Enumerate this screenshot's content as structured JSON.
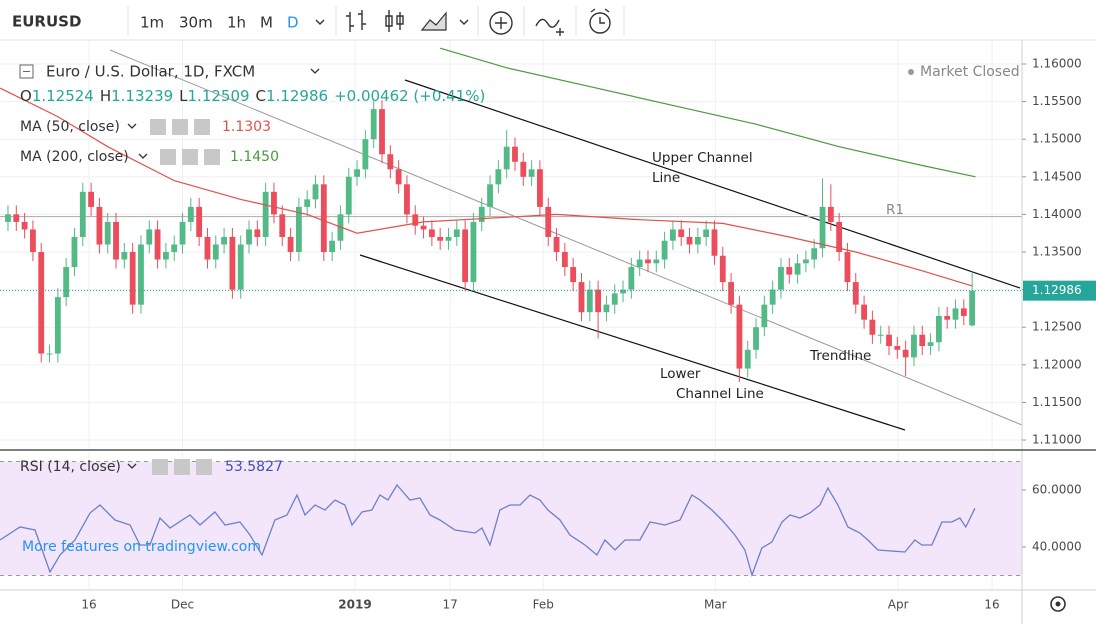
{
  "toolbar": {
    "symbol": "EURUSD",
    "intervals": [
      "1m",
      "30m",
      "1h",
      "M",
      "D"
    ]
  },
  "chart_data": {
    "type": "candlestick",
    "title": "Euro / U.S. Dollar, 1D, FXCM",
    "status": "Market Closed",
    "ohlc_labels": [
      "O",
      "H",
      "L",
      "C"
    ],
    "change": "+0.00462 (+0.41%)",
    "up_color": "#53b987",
    "down_color": "#eb4d5c",
    "candles": [
      [
        1.139,
        1.1412,
        1.1378,
        1.14
      ],
      [
        1.14,
        1.1412,
        1.1378,
        1.139
      ],
      [
        1.139,
        1.1402,
        1.1368,
        1.138
      ],
      [
        1.138,
        1.1392,
        1.1338,
        1.135
      ],
      [
        1.135,
        1.1362,
        1.1203,
        1.1215
      ],
      [
        1.1215,
        1.1227,
        1.1203,
        1.1215
      ],
      [
        1.1215,
        1.1302,
        1.1203,
        1.129
      ],
      [
        1.129,
        1.1342,
        1.1278,
        1.133
      ],
      [
        1.133,
        1.1382,
        1.1318,
        1.137
      ],
      [
        1.137,
        1.1442,
        1.1358,
        1.143
      ],
      [
        1.143,
        1.1442,
        1.1398,
        1.141
      ],
      [
        1.141,
        1.1422,
        1.1348,
        1.136
      ],
      [
        1.136,
        1.1402,
        1.1348,
        1.139
      ],
      [
        1.139,
        1.1402,
        1.1328,
        1.134
      ],
      [
        1.134,
        1.1362,
        1.1328,
        1.135
      ],
      [
        1.135,
        1.1362,
        1.1268,
        1.128
      ],
      [
        1.128,
        1.1372,
        1.1268,
        1.136
      ],
      [
        1.136,
        1.1392,
        1.1348,
        1.138
      ],
      [
        1.138,
        1.1392,
        1.1328,
        1.134
      ],
      [
        1.134,
        1.1362,
        1.1328,
        1.135
      ],
      [
        1.135,
        1.1372,
        1.1338,
        1.136
      ],
      [
        1.136,
        1.1402,
        1.1348,
        1.139
      ],
      [
        1.139,
        1.1422,
        1.1378,
        1.141
      ],
      [
        1.141,
        1.1422,
        1.1358,
        1.137
      ],
      [
        1.137,
        1.1382,
        1.1328,
        1.134
      ],
      [
        1.134,
        1.1372,
        1.1328,
        1.136
      ],
      [
        1.136,
        1.1382,
        1.1348,
        1.137
      ],
      [
        1.137,
        1.1382,
        1.1288,
        1.13
      ],
      [
        1.13,
        1.1372,
        1.1288,
        1.136
      ],
      [
        1.136,
        1.1392,
        1.1348,
        1.138
      ],
      [
        1.138,
        1.1392,
        1.1358,
        1.137
      ],
      [
        1.137,
        1.1442,
        1.1358,
        1.143
      ],
      [
        1.143,
        1.1442,
        1.1388,
        1.14
      ],
      [
        1.14,
        1.1412,
        1.1358,
        1.137
      ],
      [
        1.137,
        1.1382,
        1.1338,
        1.135
      ],
      [
        1.135,
        1.1422,
        1.1338,
        1.141
      ],
      [
        1.141,
        1.1432,
        1.1398,
        1.142
      ],
      [
        1.142,
        1.1452,
        1.1408,
        1.144
      ],
      [
        1.144,
        1.1452,
        1.1338,
        1.135
      ],
      [
        1.135,
        1.1377,
        1.1338,
        1.1365
      ],
      [
        1.1365,
        1.1412,
        1.1353,
        1.14
      ],
      [
        1.14,
        1.1462,
        1.1388,
        1.145
      ],
      [
        1.145,
        1.1472,
        1.1438,
        1.146
      ],
      [
        1.146,
        1.1512,
        1.1448,
        1.15
      ],
      [
        1.15,
        1.1552,
        1.1488,
        1.154
      ],
      [
        1.154,
        1.1552,
        1.1468,
        1.148
      ],
      [
        1.148,
        1.1492,
        1.1448,
        1.146
      ],
      [
        1.146,
        1.1472,
        1.1428,
        1.144
      ],
      [
        1.144,
        1.1452,
        1.1388,
        1.14
      ],
      [
        1.14,
        1.1412,
        1.1373,
        1.1385
      ],
      [
        1.1385,
        1.1397,
        1.1368,
        1.138
      ],
      [
        1.138,
        1.1392,
        1.1358,
        1.137
      ],
      [
        1.137,
        1.1382,
        1.1353,
        1.1365
      ],
      [
        1.1365,
        1.1382,
        1.1353,
        1.137
      ],
      [
        1.137,
        1.1392,
        1.1358,
        1.138
      ],
      [
        1.138,
        1.1392,
        1.1298,
        1.131
      ],
      [
        1.131,
        1.1402,
        1.1298,
        1.139
      ],
      [
        1.139,
        1.1422,
        1.1378,
        1.141
      ],
      [
        1.141,
        1.1452,
        1.1398,
        1.144
      ],
      [
        1.144,
        1.1472,
        1.1428,
        1.146
      ],
      [
        1.146,
        1.1512,
        1.1448,
        1.149
      ],
      [
        1.149,
        1.1502,
        1.1458,
        1.147
      ],
      [
        1.147,
        1.1482,
        1.1438,
        1.145
      ],
      [
        1.145,
        1.1472,
        1.1438,
        1.146
      ],
      [
        1.146,
        1.1472,
        1.1398,
        1.141
      ],
      [
        1.141,
        1.1422,
        1.1358,
        1.137
      ],
      [
        1.137,
        1.1382,
        1.1338,
        1.135
      ],
      [
        1.135,
        1.1362,
        1.1318,
        1.133
      ],
      [
        1.133,
        1.1342,
        1.1298,
        1.131
      ],
      [
        1.131,
        1.1322,
        1.1258,
        1.127
      ],
      [
        1.127,
        1.1312,
        1.1258,
        1.13
      ],
      [
        1.13,
        1.1312,
        1.1235,
        1.127
      ],
      [
        1.127,
        1.1292,
        1.1258,
        1.128
      ],
      [
        1.128,
        1.1307,
        1.1268,
        1.1295
      ],
      [
        1.1295,
        1.1312,
        1.1283,
        1.13
      ],
      [
        1.13,
        1.1342,
        1.1288,
        1.133
      ],
      [
        1.133,
        1.1352,
        1.1318,
        1.134
      ],
      [
        1.134,
        1.1352,
        1.1323,
        1.1335
      ],
      [
        1.1335,
        1.1352,
        1.1323,
        1.134
      ],
      [
        1.134,
        1.1377,
        1.1328,
        1.1365
      ],
      [
        1.1365,
        1.1392,
        1.1353,
        1.138
      ],
      [
        1.138,
        1.1392,
        1.1358,
        1.137
      ],
      [
        1.137,
        1.1382,
        1.1348,
        1.136
      ],
      [
        1.136,
        1.1382,
        1.1348,
        1.137
      ],
      [
        1.137,
        1.1392,
        1.1358,
        1.138
      ],
      [
        1.138,
        1.1392,
        1.1333,
        1.1345
      ],
      [
        1.1345,
        1.1357,
        1.1298,
        1.131
      ],
      [
        1.131,
        1.1322,
        1.1268,
        1.128
      ],
      [
        1.128,
        1.1292,
        1.1177,
        1.1195
      ],
      [
        1.1195,
        1.1232,
        1.1183,
        1.122
      ],
      [
        1.122,
        1.1262,
        1.1208,
        1.125
      ],
      [
        1.125,
        1.1292,
        1.1238,
        1.128
      ],
      [
        1.128,
        1.1312,
        1.1268,
        1.13
      ],
      [
        1.13,
        1.1342,
        1.1288,
        1.133
      ],
      [
        1.133,
        1.1342,
        1.1308,
        1.132
      ],
      [
        1.132,
        1.1347,
        1.1308,
        1.1335
      ],
      [
        1.1335,
        1.1352,
        1.1323,
        1.134
      ],
      [
        1.134,
        1.1367,
        1.1328,
        1.1355
      ],
      [
        1.1355,
        1.1448,
        1.1343,
        1.141
      ],
      [
        1.141,
        1.144,
        1.1378,
        1.139
      ],
      [
        1.139,
        1.1402,
        1.1338,
        1.135
      ],
      [
        1.135,
        1.1362,
        1.1298,
        1.131
      ],
      [
        1.131,
        1.1322,
        1.1268,
        1.128
      ],
      [
        1.128,
        1.1292,
        1.1248,
        1.126
      ],
      [
        1.126,
        1.1272,
        1.1228,
        1.124
      ],
      [
        1.124,
        1.1252,
        1.1228,
        1.124
      ],
      [
        1.124,
        1.1252,
        1.1213,
        1.1225
      ],
      [
        1.1225,
        1.1237,
        1.1208,
        1.122
      ],
      [
        1.122,
        1.1232,
        1.1185,
        1.121
      ],
      [
        1.121,
        1.1252,
        1.1198,
        1.124
      ],
      [
        1.124,
        1.1252,
        1.1213,
        1.1225
      ],
      [
        1.1225,
        1.1242,
        1.1213,
        1.123
      ],
      [
        1.123,
        1.1277,
        1.1218,
        1.1265
      ],
      [
        1.1265,
        1.1277,
        1.1248,
        1.126
      ],
      [
        1.126,
        1.1287,
        1.1248,
        1.1275
      ],
      [
        1.1275,
        1.1287,
        1.1253,
        1.1265
      ],
      [
        1.12524,
        1.13239,
        1.12509,
        1.12986
      ]
    ],
    "xlim": [
      -0.96,
      122
    ],
    "xticks": [
      {
        "value": 9.75,
        "label": "16"
      },
      {
        "value": 21,
        "label": "Dec"
      },
      {
        "value": 41.75,
        "label": "2019"
      },
      {
        "value": 53.2,
        "label": "17"
      },
      {
        "value": 64.4,
        "label": "Feb"
      },
      {
        "value": 85.1,
        "label": "Mar"
      },
      {
        "value": 107.1,
        "label": "Apr"
      },
      {
        "value": 118.4,
        "label": "16"
      }
    ],
    "ylim": [
      1.10894,
      1.16319
    ],
    "yticks": [
      {
        "value": 1.16,
        "label": "1.16000"
      },
      {
        "value": 1.155,
        "label": "1.15500"
      },
      {
        "value": 1.15,
        "label": "1.15000"
      },
      {
        "value": 1.145,
        "label": "1.14500"
      },
      {
        "value": 1.14,
        "label": "1.14000"
      },
      {
        "value": 1.135,
        "label": "1.13500"
      },
      {
        "value": 1.13,
        "label": "1.13000"
      },
      {
        "value": 1.125,
        "label": "1.12500"
      },
      {
        "value": 1.12,
        "label": "1.12000"
      },
      {
        "value": 1.115,
        "label": "1.11500"
      },
      {
        "value": 1.11,
        "label": "1.11000"
      }
    ],
    "grid": true,
    "r1_level": 1.1397,
    "ma": [
      {
        "name": "MA (50, close)",
        "color": "#e0514d",
        "last": 1.1303,
        "x": [
          -0.96,
          6,
          12,
          20,
          28,
          36,
          42,
          50,
          58,
          66,
          76,
          86,
          94,
          102,
          110,
          116
        ],
        "values": [
          1.1568,
          1.153,
          1.149,
          1.1445,
          1.142,
          1.14,
          1.1375,
          1.139,
          1.1395,
          1.14,
          1.1393,
          1.1388,
          1.137,
          1.135,
          1.1325,
          1.1305
        ]
      },
      {
        "name": "MA (200, close)",
        "color": "#4a9a3e",
        "last_label": "1.1450",
        "x": [
          52,
          60,
          70,
          80,
          90,
          100,
          110,
          116.4
        ],
        "values": [
          1.1621,
          1.1595,
          1.157,
          1.1545,
          1.152,
          1.149,
          1.1465,
          1.145
        ]
      }
    ],
    "annotations": [
      "Upper Channel",
      "Line",
      "Trendline",
      "Lower",
      "Channel Line",
      "R1"
    ],
    "rsi": {
      "name": "RSI (14, close)",
      "color": "#6f7fcc",
      "x": [
        -0.96,
        1.45,
        3.25,
        5.05,
        6.26,
        8.06,
        9.87,
        11.07,
        12.87,
        14.68,
        15.88,
        17.08,
        18.29,
        19.49,
        21.9,
        23.1,
        24.9,
        26.11,
        27.91,
        29.12,
        30.56,
        32.12,
        33.57,
        34.77,
        35.73,
        36.94,
        38.14,
        39.34,
        40.54,
        41.39,
        42.59,
        43.79,
        44.75,
        45.72,
        46.8,
        48.36,
        49.56,
        50.77,
        51.97,
        53.78,
        56.18,
        57.02,
        57.99,
        59.19,
        60.39,
        61.6,
        62.8,
        64,
        64.96,
        66.41,
        67.61,
        69.42,
        70.86,
        71.82,
        73.03,
        74.23,
        76.03,
        77.24,
        79.04,
        80.85,
        82.29,
        83.25,
        84.69,
        85.9,
        87.46,
        88.66,
        89.51,
        90.71,
        91.91,
        93.12,
        94.08,
        95.28,
        96.48,
        97.69,
        98.65,
        99.85,
        101.05,
        102.5,
        103.46,
        104.66,
        107.91,
        109.11,
        109.95,
        111.16,
        112.36,
        113.56,
        114.52,
        115.24,
        116.33
      ],
      "values": [
        42.46,
        47.02,
        45.96,
        31.23,
        37.19,
        42.46,
        51.93,
        54.74,
        49.47,
        47.72,
        40.7,
        40.7,
        50.18,
        46.67,
        51.23,
        47.72,
        52.28,
        47.72,
        48.77,
        44.21,
        37.19,
        49.47,
        51.23,
        58.25,
        51.23,
        54.74,
        52.98,
        56.49,
        54.74,
        47.72,
        52.28,
        52.98,
        58.25,
        56.49,
        61.75,
        56.49,
        57.19,
        51.23,
        49.47,
        45.96,
        44.91,
        46.67,
        40.7,
        52.98,
        54.74,
        54.74,
        58.25,
        56.49,
        52.98,
        49.47,
        44.21,
        40.7,
        37.19,
        42.46,
        38.95,
        42.46,
        42.46,
        48.77,
        47.72,
        49.47,
        58.25,
        56.49,
        52.98,
        49.47,
        44.21,
        38.95,
        30.18,
        39.65,
        41.75,
        48.77,
        51.23,
        50.18,
        51.93,
        54.74,
        60.7,
        54.74,
        47.02,
        44.91,
        42.46,
        38.95,
        38.25,
        42.46,
        40.7,
        40.7,
        48.77,
        48.77,
        50.18,
        47.02,
        53.5827
      ],
      "ylim": [
        24.91,
        73.33
      ],
      "yticks": [
        {
          "value": 60,
          "label": "60.0000"
        },
        {
          "value": 40,
          "label": "40.0000"
        }
      ],
      "bands": [
        70,
        30
      ]
    },
    "watermark": "More features on tradingview.com"
  }
}
